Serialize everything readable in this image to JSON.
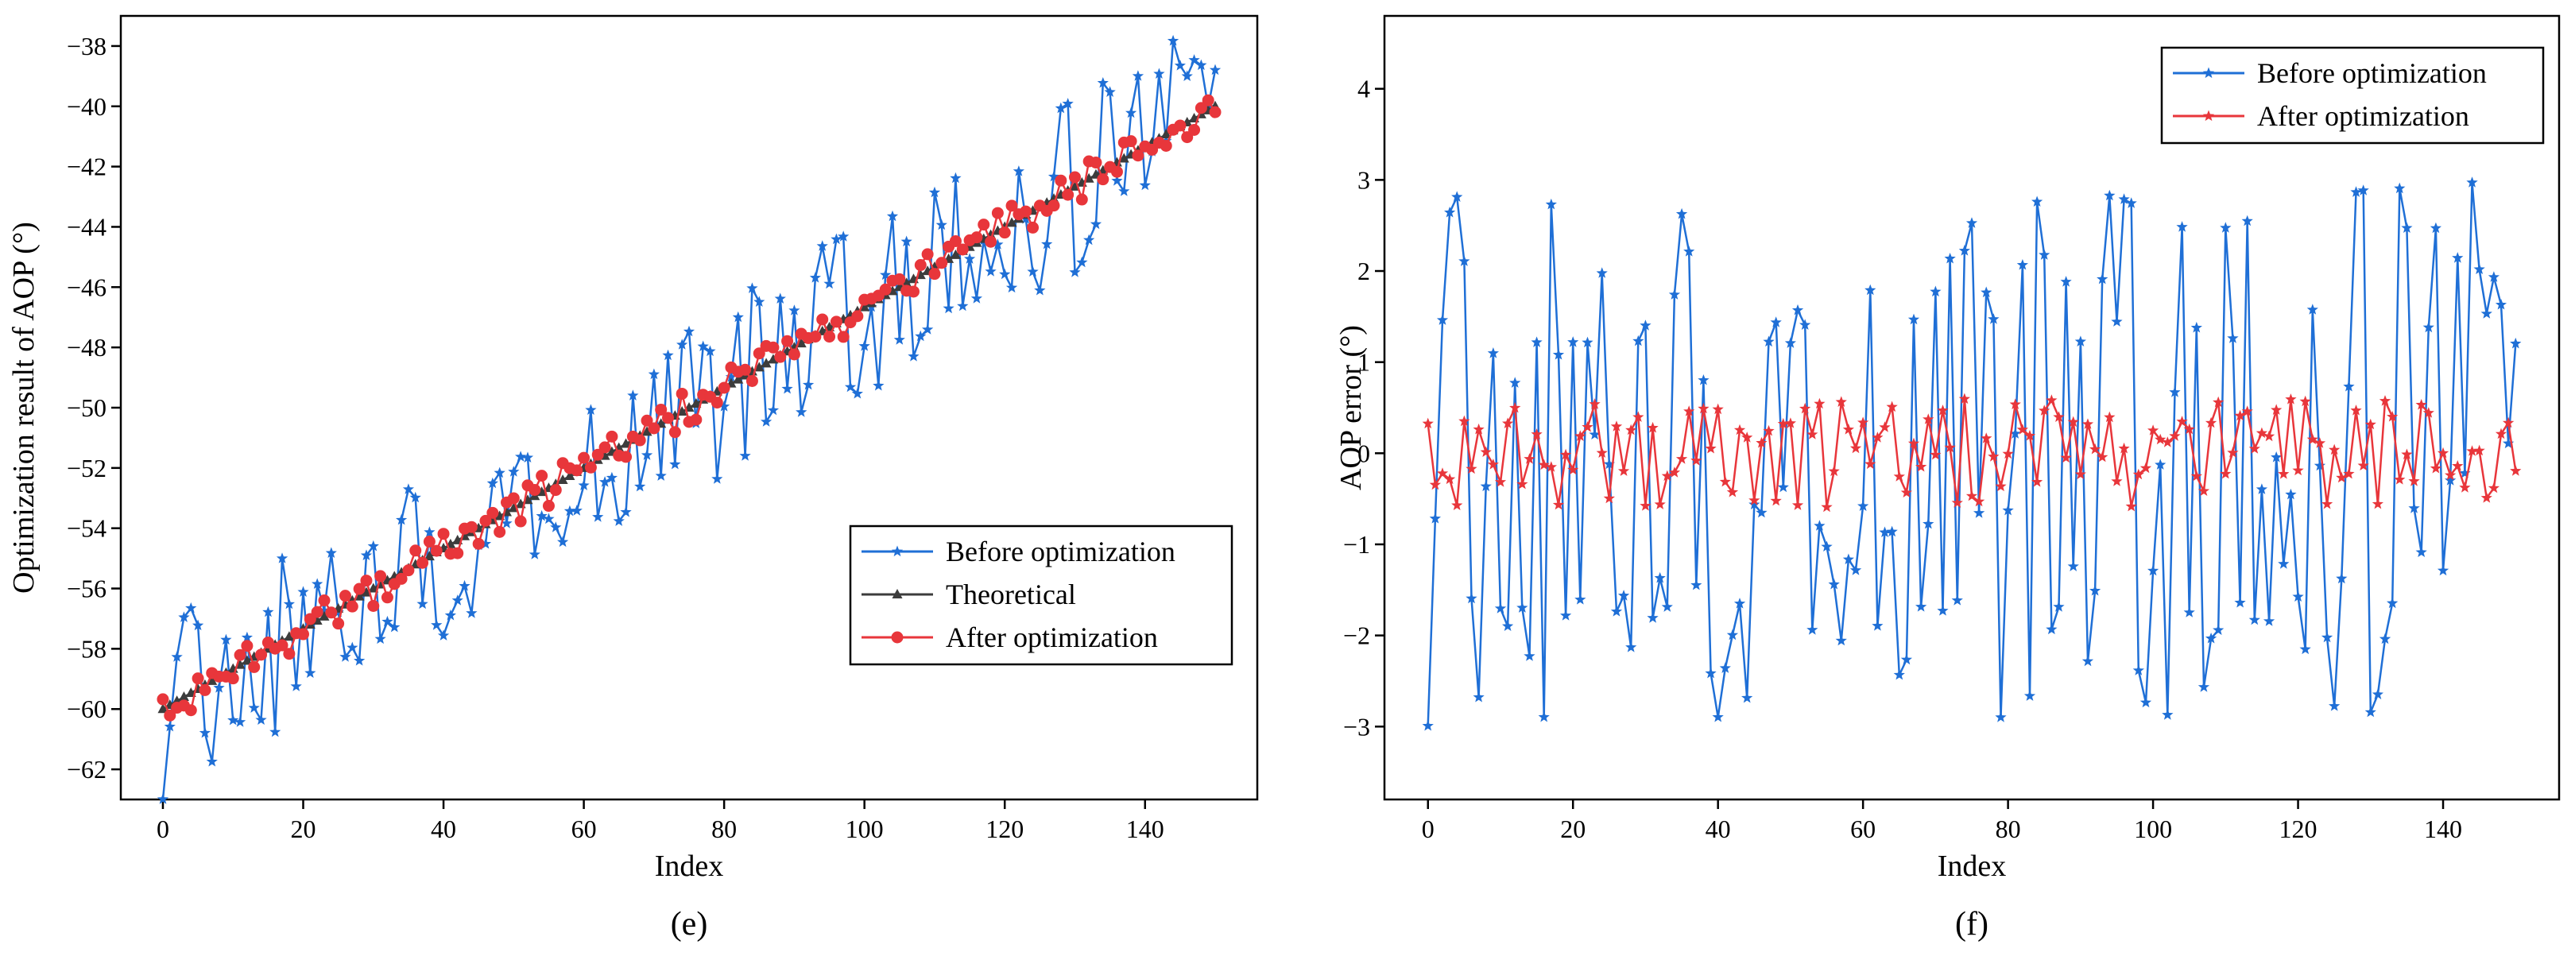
{
  "chart_data": [
    {
      "type": "line",
      "panel_label": "(e)",
      "xlabel": "Index",
      "ylabel": "Optimization result of AOP (°)",
      "xlim": [
        -6,
        156
      ],
      "ylim": [
        -63,
        -37
      ],
      "xticks": [
        "0",
        "20",
        "40",
        "60",
        "80",
        "100",
        "120",
        "140"
      ],
      "yticks": [
        "-62",
        "-60",
        "-58",
        "-56",
        "-54",
        "-52",
        "-50",
        "-48",
        "-46",
        "-44",
        "-42",
        "-40",
        "-38"
      ],
      "legend_position": "lower-right",
      "series": [
        {
          "name": "Before optimization",
          "color": "#1f6fd6",
          "marker": "star"
        },
        {
          "name": "Theoretical",
          "color": "#3c3c3c",
          "marker": "triangle"
        },
        {
          "name": "After optimization",
          "color": "#e8363b",
          "marker": "circle"
        }
      ],
      "x_range": [
        0,
        150
      ],
      "theoretical_line": {
        "start": -60,
        "end": -40
      },
      "before_deviation_range": [
        -3,
        3
      ],
      "after_deviation_range": [
        -0.6,
        0.6
      ]
    },
    {
      "type": "line",
      "panel_label": "(f)",
      "xlabel": "Index",
      "ylabel": "AOP error (°)",
      "xlim": [
        -6,
        156
      ],
      "ylim": [
        -3.8,
        4.8
      ],
      "xticks": [
        "0",
        "20",
        "40",
        "60",
        "80",
        "100",
        "120",
        "140"
      ],
      "yticks": [
        "-3",
        "-2",
        "-1",
        "0",
        "1",
        "2",
        "3",
        "4"
      ],
      "legend_position": "top-right",
      "series": [
        {
          "name": "Before optimization",
          "color": "#1f6fd6",
          "marker": "star"
        },
        {
          "name": "After optimization",
          "color": "#e8363b",
          "marker": "star"
        }
      ],
      "x_range": [
        0,
        150
      ],
      "before_error_range": [
        -3,
        3
      ],
      "after_error_range": [
        -0.6,
        0.6
      ]
    }
  ]
}
